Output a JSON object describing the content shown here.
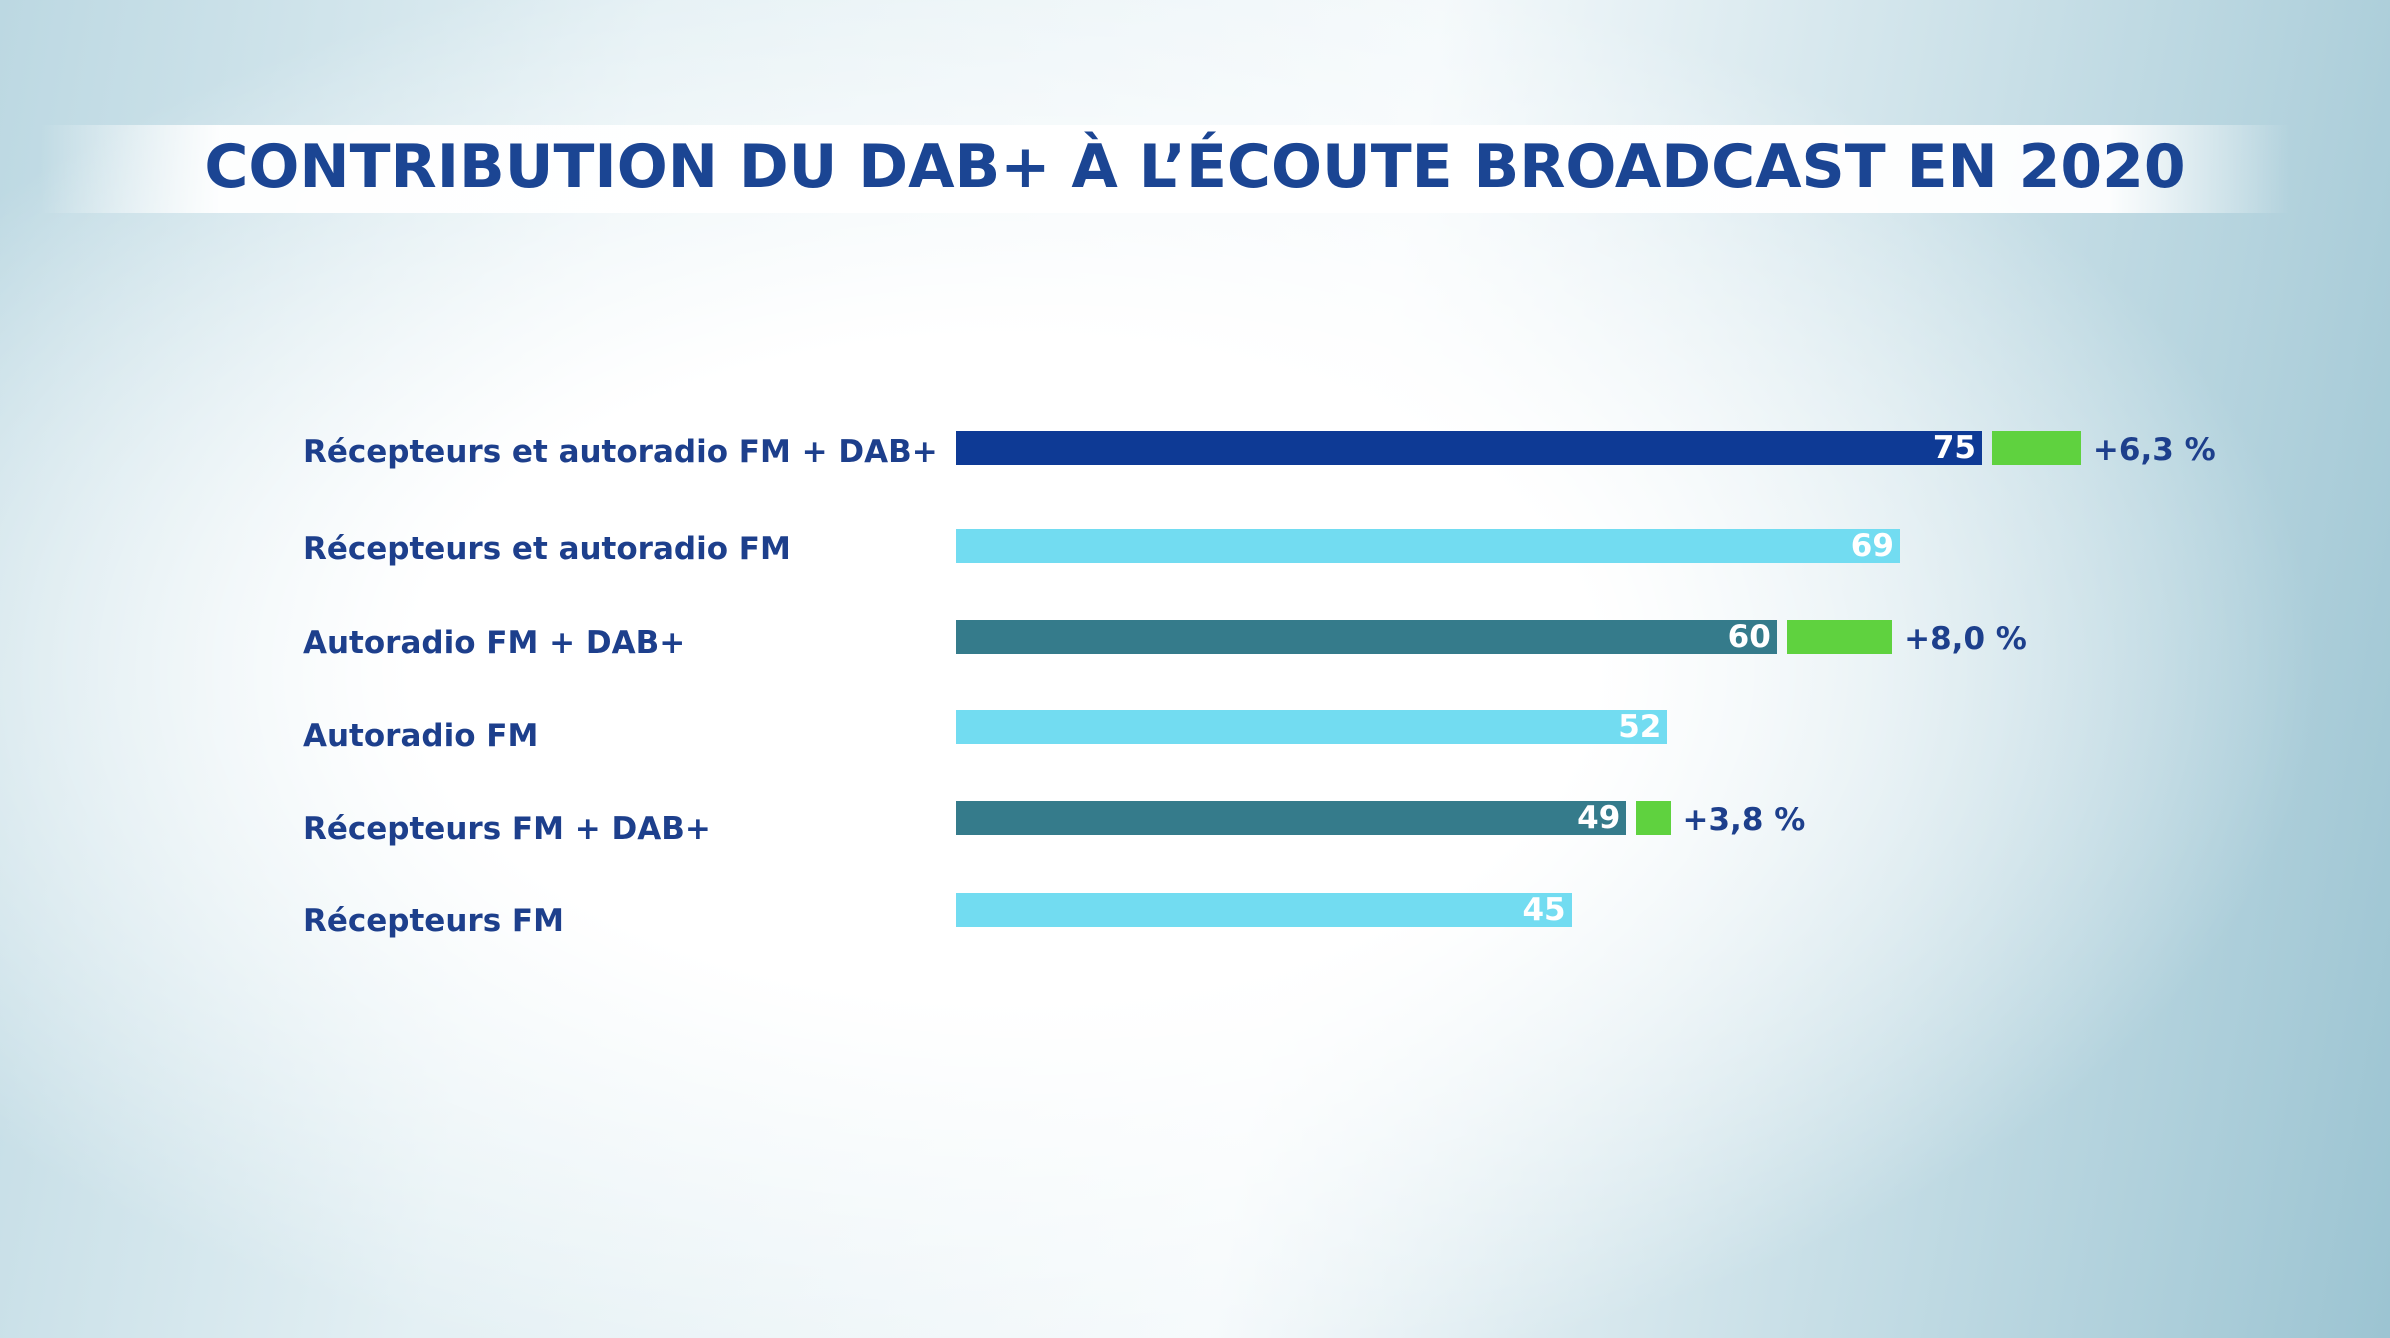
{
  "chart_data": {
    "type": "bar",
    "orientation": "horizontal",
    "title": "CONTRIBUTION DU DAB+ À L’ÉCOUTE BROADCAST EN 2020",
    "xlabel": "",
    "ylabel": "",
    "grid": false,
    "categories": [
      "Récepteurs et autoradio FM + DAB+",
      "Récepteurs et autoradio FM",
      "Autoradio FM + DAB+",
      "Autoradio FM",
      "Récepteurs FM + DAB+",
      "Récepteurs FM"
    ],
    "values": [
      75,
      69,
      60,
      52,
      49,
      45
    ],
    "value_labels": [
      "75",
      "69",
      "60",
      "52",
      "49",
      "45"
    ],
    "gains": [
      "+6,3 %",
      null,
      "+8,0 %",
      null,
      "+3,8 %",
      null
    ],
    "gain_bar_units": [
      6.5,
      0,
      7.7,
      0,
      2.5,
      0
    ],
    "bar_colors": [
      "#0e3a95",
      "#72dcf1",
      "#357b8b",
      "#72dcf1",
      "#357b8b",
      "#72dcf1"
    ],
    "gain_color": "#5fd23f"
  }
}
